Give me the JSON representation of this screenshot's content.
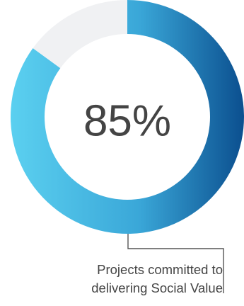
{
  "chart_data": {
    "type": "pie",
    "center_label": "85%",
    "slices": [
      {
        "label": "Projects committed to delivering Social Value",
        "value": 85,
        "color": "#0b4f8f"
      },
      {
        "label": "",
        "value": 15,
        "color": "#f0f1f3"
      }
    ],
    "gradient_colors": [
      "#5bd0f0",
      "#3aa7d8",
      "#0b4f8f"
    ]
  },
  "caption": {
    "line1": "Projects committed to",
    "line2": "delivering Social Value"
  }
}
